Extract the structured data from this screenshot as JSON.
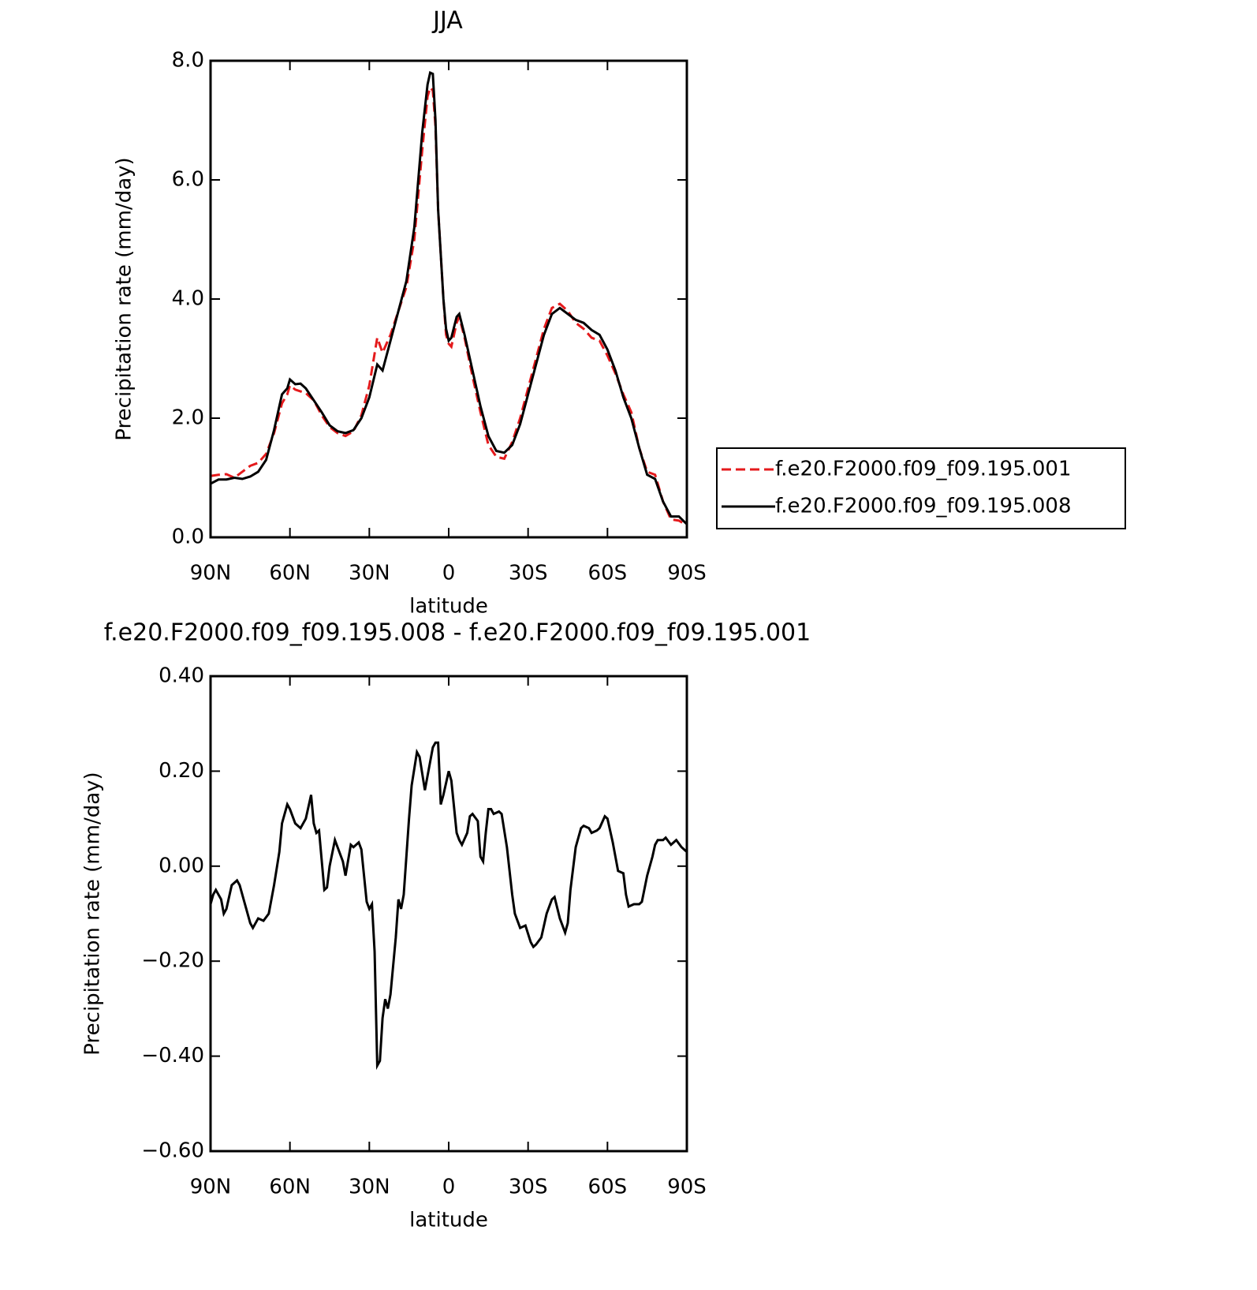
{
  "chart_data": [
    {
      "type": "line",
      "title": "JJA",
      "xlabel": "latitude",
      "ylabel": "Precipitation rate (mm/day)",
      "xlim": [
        90,
        -90
      ],
      "xticks": [
        {
          "value": 90,
          "label": "90N"
        },
        {
          "value": 60,
          "label": "60N"
        },
        {
          "value": 30,
          "label": "30N"
        },
        0,
        {
          "value": -30,
          "label": "30S"
        },
        {
          "value": -60,
          "label": "60S"
        },
        {
          "value": -90,
          "label": "90S"
        }
      ],
      "ylim": [
        0,
        8
      ],
      "yticks": [
        {
          "value": 0,
          "label": "0.0"
        },
        {
          "value": 2,
          "label": "2.0"
        },
        {
          "value": 4,
          "label": "4.0"
        },
        {
          "value": 6,
          "label": "6.0"
        },
        {
          "value": 8,
          "label": "8.0"
        }
      ],
      "legend": "outside-right",
      "x": [
        90,
        87,
        84,
        81,
        78,
        75,
        72,
        69,
        66,
        63,
        61,
        60,
        58,
        56,
        54,
        51,
        48,
        45,
        42,
        39,
        36,
        33,
        30,
        27,
        25,
        22,
        19,
        16,
        13,
        10,
        8,
        7,
        6,
        5,
        4,
        2,
        1,
        0,
        -1,
        -3,
        -4,
        -6,
        -9,
        -12,
        -15,
        -18,
        -21,
        -24,
        -27,
        -30,
        -33,
        -36,
        -39,
        -42,
        -45,
        -48,
        -51,
        -54,
        -57,
        -60,
        -63,
        -66,
        -69,
        -72,
        -75,
        -78,
        -81,
        -84,
        -87,
        -90
      ],
      "series": [
        {
          "name": "f.e20.F2000.f09_f09.195.001",
          "color": "#e41a1c",
          "dash": true,
          "values": [
            1.03,
            1.05,
            1.06,
            1.0,
            1.1,
            1.2,
            1.25,
            1.4,
            1.75,
            2.25,
            2.4,
            2.55,
            2.48,
            2.45,
            2.42,
            2.3,
            2.05,
            1.85,
            1.75,
            1.7,
            1.78,
            2.05,
            2.55,
            3.35,
            3.1,
            3.4,
            3.8,
            4.2,
            5.0,
            6.5,
            7.4,
            7.55,
            7.5,
            6.9,
            5.5,
            4.0,
            3.4,
            3.25,
            3.2,
            3.6,
            3.7,
            3.35,
            2.7,
            2.1,
            1.55,
            1.35,
            1.32,
            1.6,
            2.0,
            2.5,
            3.0,
            3.5,
            3.85,
            3.92,
            3.8,
            3.6,
            3.5,
            3.35,
            3.3,
            3.05,
            2.75,
            2.4,
            2.1,
            1.5,
            1.1,
            1.05,
            0.6,
            0.3,
            0.28,
            0.2
          ]
        },
        {
          "name": "f.e20.F2000.f09_f09.195.008",
          "color": "#000000",
          "dash": false,
          "values": [
            0.9,
            0.97,
            0.97,
            1.0,
            0.98,
            1.02,
            1.1,
            1.3,
            1.8,
            2.4,
            2.5,
            2.65,
            2.57,
            2.58,
            2.5,
            2.3,
            2.1,
            1.88,
            1.78,
            1.75,
            1.8,
            2.0,
            2.35,
            2.9,
            2.8,
            3.3,
            3.8,
            4.3,
            5.2,
            6.8,
            7.6,
            7.8,
            7.78,
            7.0,
            5.5,
            4.0,
            3.5,
            3.3,
            3.35,
            3.7,
            3.75,
            3.4,
            2.8,
            2.2,
            1.7,
            1.45,
            1.42,
            1.55,
            1.9,
            2.4,
            2.9,
            3.4,
            3.75,
            3.85,
            3.75,
            3.65,
            3.6,
            3.48,
            3.4,
            3.15,
            2.8,
            2.35,
            2.0,
            1.5,
            1.05,
            0.98,
            0.6,
            0.35,
            0.35,
            0.22
          ]
        }
      ]
    },
    {
      "type": "line",
      "title": "f.e20.F2000.f09_f09.195.008 - f.e20.F2000.f09_f09.195.001",
      "xlabel": "latitude",
      "ylabel": "Precipitation rate (mm/day)",
      "xlim": [
        90,
        -90
      ],
      "xticks": [
        {
          "value": 90,
          "label": "90N"
        },
        {
          "value": 60,
          "label": "60N"
        },
        {
          "value": 30,
          "label": "30N"
        },
        0,
        {
          "value": -30,
          "label": "30S"
        },
        {
          "value": -60,
          "label": "60S"
        },
        {
          "value": -90,
          "label": "90S"
        }
      ],
      "ylim": [
        -0.6,
        0.4
      ],
      "yticks": [
        {
          "value": -0.6,
          "label": "−0.60"
        },
        {
          "value": -0.4,
          "label": "−0.40"
        },
        {
          "value": -0.2,
          "label": "−0.20"
        },
        {
          "value": 0,
          "label": "0.00"
        },
        {
          "value": 0.2,
          "label": "0.20"
        },
        {
          "value": 0.4,
          "label": "0.40"
        }
      ],
      "x": [
        90,
        89,
        88,
        86,
        85,
        84,
        82,
        80,
        79,
        77,
        75,
        74,
        72,
        70,
        68,
        66,
        64,
        63,
        61,
        60,
        58,
        56,
        54,
        52,
        51,
        50,
        49,
        47,
        46,
        45,
        43,
        42,
        40,
        39,
        37,
        36,
        34,
        33,
        31,
        30,
        29,
        28,
        27,
        26,
        25,
        24,
        23,
        22,
        20,
        19,
        18,
        17,
        15,
        14,
        12,
        11,
        9,
        7,
        6,
        5,
        4,
        3,
        2,
        0,
        -1,
        -3,
        -4,
        -5,
        -7,
        -8,
        -9,
        -11,
        -12,
        -13,
        -14,
        -15,
        -16,
        -17,
        -19,
        -20,
        -22,
        -24,
        -25,
        -27,
        -29,
        -31,
        -32,
        -33,
        -35,
        -37,
        -39,
        -40,
        -42,
        -44,
        -45,
        -46,
        -48,
        -50,
        -51,
        -53,
        -54,
        -56,
        -57,
        -59,
        -60,
        -62,
        -63,
        -64,
        -66,
        -67,
        -68,
        -70,
        -72,
        -73,
        -75,
        -77,
        -78,
        -79,
        -81,
        -82,
        -84,
        -85,
        -86,
        -88,
        -90
      ],
      "series": [
        {
          "color": "#000000",
          "dash": false,
          "values": [
            -0.08,
            -0.06,
            -0.05,
            -0.07,
            -0.1,
            -0.09,
            -0.04,
            -0.03,
            -0.04,
            -0.08,
            -0.12,
            -0.13,
            -0.11,
            -0.115,
            -0.1,
            -0.04,
            0.03,
            0.09,
            0.13,
            0.12,
            0.09,
            0.08,
            0.1,
            0.15,
            0.09,
            0.07,
            0.075,
            -0.05,
            -0.045,
            0.0,
            0.055,
            0.04,
            0.01,
            -0.02,
            0.045,
            0.04,
            0.05,
            0.035,
            -0.075,
            -0.09,
            -0.08,
            -0.18,
            -0.42,
            -0.41,
            -0.32,
            -0.28,
            -0.3,
            -0.27,
            -0.15,
            -0.07,
            -0.09,
            -0.06,
            0.1,
            0.17,
            0.24,
            0.23,
            0.16,
            0.22,
            0.25,
            0.26,
            0.26,
            0.13,
            0.15,
            0.2,
            0.18,
            0.07,
            0.055,
            0.045,
            0.07,
            0.105,
            0.11,
            0.095,
            0.02,
            0.01,
            0.07,
            0.12,
            0.12,
            0.11,
            0.115,
            0.11,
            0.04,
            -0.06,
            -0.1,
            -0.13,
            -0.125,
            -0.16,
            -0.17,
            -0.165,
            -0.15,
            -0.1,
            -0.07,
            -0.065,
            -0.11,
            -0.14,
            -0.12,
            -0.05,
            0.04,
            0.08,
            0.085,
            0.08,
            0.07,
            0.075,
            0.08,
            0.105,
            0.1,
            0.05,
            0.02,
            -0.01,
            -0.015,
            -0.06,
            -0.085,
            -0.08,
            -0.08,
            -0.075,
            -0.02,
            0.02,
            0.045,
            0.055,
            0.055,
            0.06,
            0.045,
            0.05,
            0.055,
            0.04,
            0.03
          ]
        }
      ]
    }
  ]
}
